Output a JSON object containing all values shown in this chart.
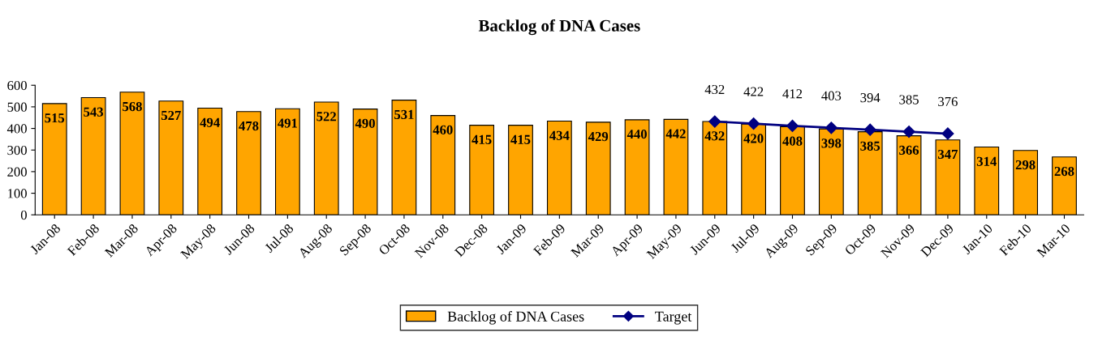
{
  "chart_data": {
    "type": "bar",
    "title": "Backlog of DNA Cases",
    "categories": [
      "Jan-08",
      "Feb-08",
      "Mar-08",
      "Apr-08",
      "May-08",
      "Jun-08",
      "Jul-08",
      "Aug-08",
      "Sep-08",
      "Oct-08",
      "Nov-08",
      "Dec-08",
      "Jan-09",
      "Feb-09",
      "Mar-09",
      "Apr-09",
      "May-09",
      "Jun-09",
      "Jul-09",
      "Aug-09",
      "Sep-09",
      "Oct-09",
      "Nov-09",
      "Dec-09",
      "Jan-10",
      "Feb-10",
      "Mar-10"
    ],
    "series": [
      {
        "name": "Backlog of DNA Cases",
        "color": "#ffa500",
        "values": [
          515,
          543,
          568,
          527,
          494,
          478,
          491,
          522,
          490,
          531,
          460,
          415,
          415,
          434,
          429,
          440,
          442,
          432,
          420,
          408,
          398,
          385,
          366,
          347,
          314,
          298,
          268
        ]
      },
      {
        "name": "Target",
        "type": "line",
        "color": "#000080",
        "marker": "diamond",
        "values": [
          null,
          null,
          null,
          null,
          null,
          null,
          null,
          null,
          null,
          null,
          null,
          null,
          null,
          null,
          null,
          null,
          null,
          432,
          422,
          412,
          403,
          394,
          385,
          376,
          null,
          null,
          null
        ]
      }
    ],
    "ylim": [
      0,
      600
    ],
    "yticks": [
      0,
      100,
      200,
      300,
      400,
      500,
      600
    ],
    "grid": false,
    "legend": "bottom",
    "data_labels": true
  }
}
